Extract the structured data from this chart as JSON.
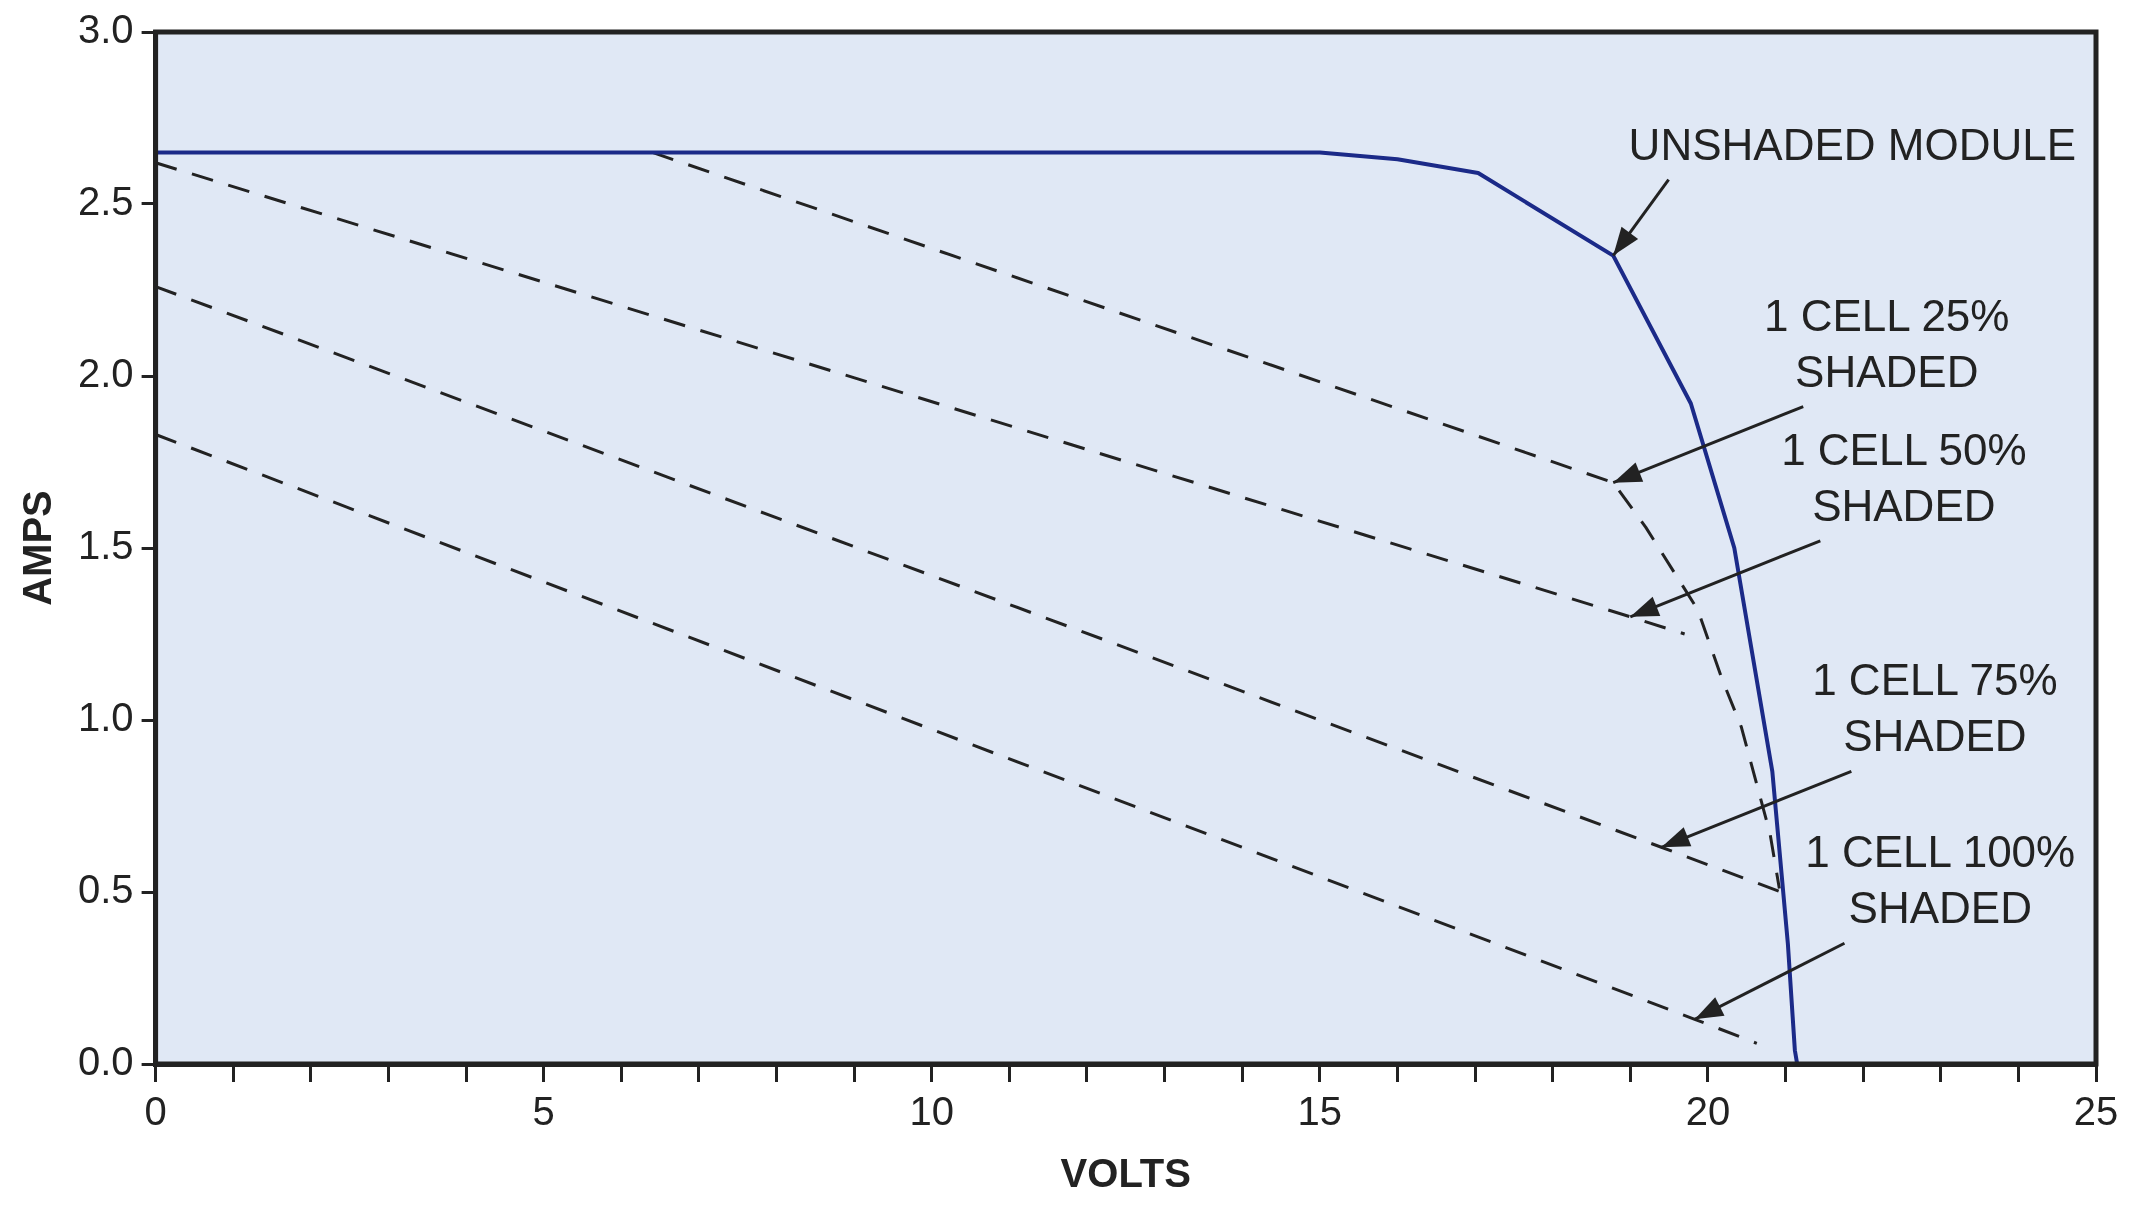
{
  "chart_data": {
    "type": "line",
    "xlabel": "VOLTS",
    "ylabel": "AMPS",
    "xlim": [
      0,
      25
    ],
    "ylim": [
      0,
      3.0
    ],
    "xticks": [
      0,
      {
        "value": 1,
        "label": null
      },
      {
        "value": 2,
        "label": null
      },
      {
        "value": 3,
        "label": null
      },
      {
        "value": 4,
        "label": null
      },
      5,
      {
        "value": 6,
        "label": null
      },
      {
        "value": 7,
        "label": null
      },
      {
        "value": 8,
        "label": null
      },
      {
        "value": 9,
        "label": null
      },
      10,
      {
        "value": 11,
        "label": null
      },
      {
        "value": 12,
        "label": null
      },
      {
        "value": 13,
        "label": null
      },
      {
        "value": 14,
        "label": null
      },
      15,
      {
        "value": 16,
        "label": null
      },
      {
        "value": 17,
        "label": null
      },
      {
        "value": 18,
        "label": null
      },
      {
        "value": 19,
        "label": null
      },
      20,
      {
        "value": 21,
        "label": null
      },
      {
        "value": 22,
        "label": null
      },
      {
        "value": 23,
        "label": null
      },
      {
        "value": 24,
        "label": null
      },
      25
    ],
    "yticks": [
      {
        "value": 0,
        "label": "0.0"
      },
      0.5,
      {
        "value": 1,
        "label": "1.0"
      },
      1.5,
      {
        "value": 2,
        "label": "2.0"
      },
      2.5,
      {
        "value": 3,
        "label": "3.0"
      }
    ],
    "grid": false,
    "legend": false,
    "marker": "none",
    "series": [
      {
        "color": "#1b2a88",
        "line_style": "solid",
        "x": [
          0,
          15,
          16,
          17.04,
          18.78,
          19.78,
          20.34,
          20.83,
          21.03,
          21.12,
          21.15
        ],
        "values": [
          2.65,
          2.65,
          2.63,
          2.59,
          2.35,
          1.92,
          1.5,
          0.85,
          0.35,
          0.04,
          0
        ]
      },
      {
        "color": "#222222",
        "line_style": "dashed",
        "x": [
          6.4,
          18.78,
          19.2,
          19.87,
          20.18,
          20.43,
          20.8,
          20.92
        ],
        "values": [
          2.65,
          1.69,
          1.56,
          1.32,
          1.12,
          0.98,
          0.67,
          0.51
        ]
      },
      {
        "color": "#222222",
        "line_style": "dashed",
        "x": [
          0,
          19,
          19.7
        ],
        "values": [
          2.62,
          1.3,
          1.25
        ]
      },
      {
        "color": "#222222",
        "line_style": "dashed",
        "x": [
          0,
          19.4,
          20.94
        ],
        "values": [
          2.26,
          0.63,
          0.5
        ]
      },
      {
        "color": "#222222",
        "line_style": "dashed",
        "x": [
          0,
          19.83,
          20.63
        ],
        "values": [
          1.83,
          0.13,
          0.06
        ]
      }
    ],
    "annotations": [
      {
        "text": "UNSHADED MODULE",
        "x": 18.78,
        "y": 2.35
      },
      {
        "text": "1 CELL 25%\nSHADED",
        "x": 18.78,
        "y": 1.69
      },
      {
        "text": "1 CELL 50%\nSHADED",
        "x": 19,
        "y": 1.3
      },
      {
        "text": "1 CELL 75%\nSHADED",
        "x": 19.4,
        "y": 0.63
      },
      {
        "text": "1 CELL 100%\nSHADED",
        "x": 19.83,
        "y": 0.13
      }
    ]
  }
}
